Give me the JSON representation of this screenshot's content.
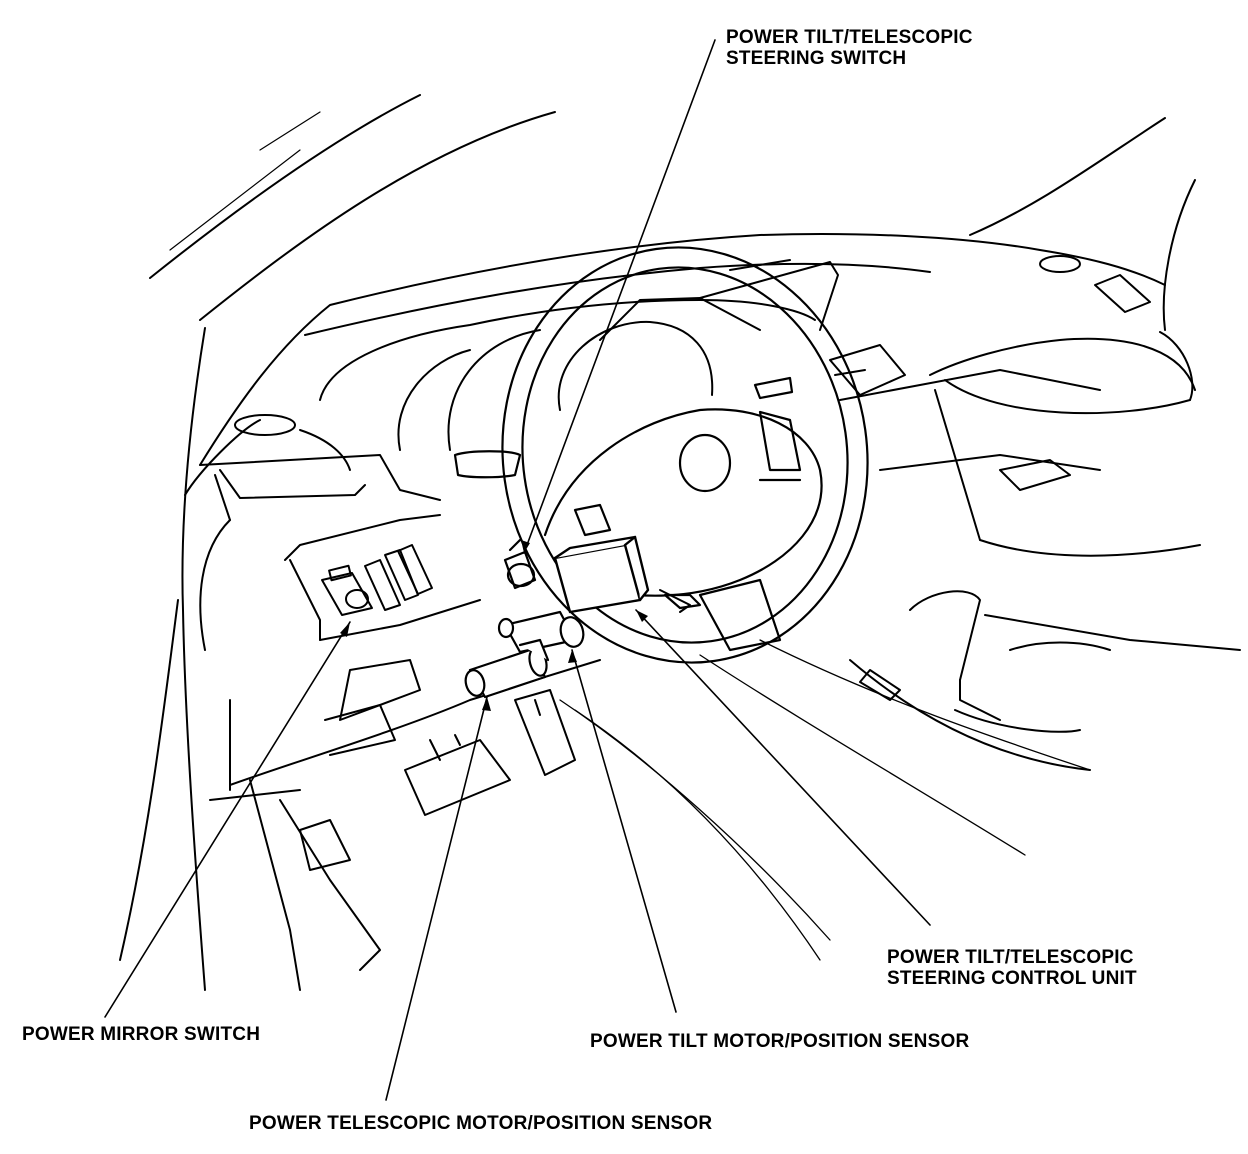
{
  "diagram": {
    "labels": {
      "tilt_telescopic_switch": {
        "line1": "POWER TILT/TELESCOPIC",
        "line2": "STEERING SWITCH"
      },
      "control_unit": {
        "line1": "POWER TILT/TELESCOPIC",
        "line2": "STEERING CONTROL UNIT"
      },
      "mirror_switch": "POWER MIRROR SWITCH",
      "tilt_motor": "POWER TILT MOTOR/POSITION SENSOR",
      "telescopic_motor": "POWER TELESCOPIC MOTOR/POSITION SENSOR"
    },
    "colors": {
      "ink": "#000000",
      "paper": "#ffffff"
    }
  }
}
